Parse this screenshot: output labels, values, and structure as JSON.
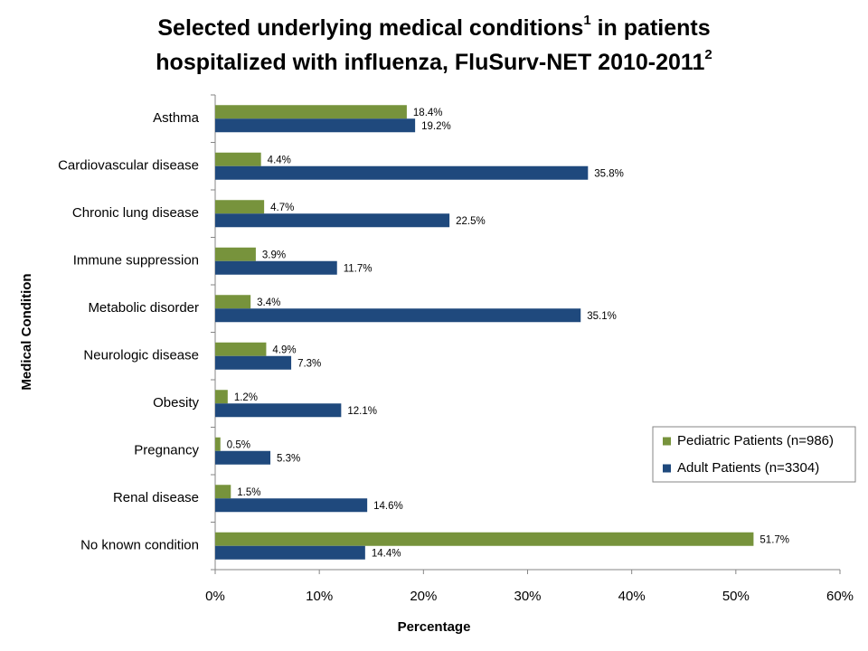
{
  "chart_data": {
    "type": "hbar",
    "title": [
      [
        {
          "text": "Selected underlying medical conditions",
          "sup": false
        },
        {
          "text": "1",
          "sup": true
        },
        {
          "text": " in patients",
          "sup": false
        }
      ],
      [
        {
          "text": "hospitalized with influenza, FluSurv-NET 2010-2011",
          "sup": false
        },
        {
          "text": "2",
          "sup": true
        }
      ]
    ],
    "x_label": "Percentage",
    "y_label": "Medical Condition",
    "categories": [
      "Asthma",
      "Cardiovascular disease",
      "Chronic lung disease",
      "Immune suppression",
      "Metabolic disorder",
      "Neurologic disease",
      "Obesity",
      "Pregnancy",
      "Renal disease",
      "No known condition"
    ],
    "series": [
      {
        "name": "Pediatric Patients (n=986)",
        "color": "#77933c",
        "values": [
          18.4,
          4.4,
          4.7,
          3.9,
          3.4,
          4.9,
          1.2,
          0.5,
          1.5,
          51.7
        ],
        "value_labels": [
          "18.4%",
          "4.4%",
          "4.7%",
          "3.9%",
          "3.4%",
          "4.9%",
          "1.2%",
          "0.5%",
          "1.5%",
          "51.7%"
        ]
      },
      {
        "name": "Adult Patients (n=3304)",
        "color": "#1f497d",
        "values": [
          19.2,
          35.8,
          22.5,
          11.7,
          35.1,
          7.3,
          12.1,
          5.3,
          14.6,
          14.4
        ],
        "value_labels": [
          "19.2%",
          "35.8%",
          "22.5%",
          "11.7%",
          "35.1%",
          "7.3%",
          "12.1%",
          "5.3%",
          "14.6%",
          "14.4%"
        ]
      }
    ],
    "xlim": [
      0,
      60
    ],
    "xticks": [
      {
        "value": 0,
        "label": "0%"
      },
      {
        "value": 10,
        "label": "10%"
      },
      {
        "value": 20,
        "label": "20%"
      },
      {
        "value": 30,
        "label": "30%"
      },
      {
        "value": 40,
        "label": "40%"
      },
      {
        "value": 50,
        "label": "50%"
      },
      {
        "value": 60,
        "label": "60%"
      }
    ],
    "grid": false,
    "legend": "right"
  }
}
